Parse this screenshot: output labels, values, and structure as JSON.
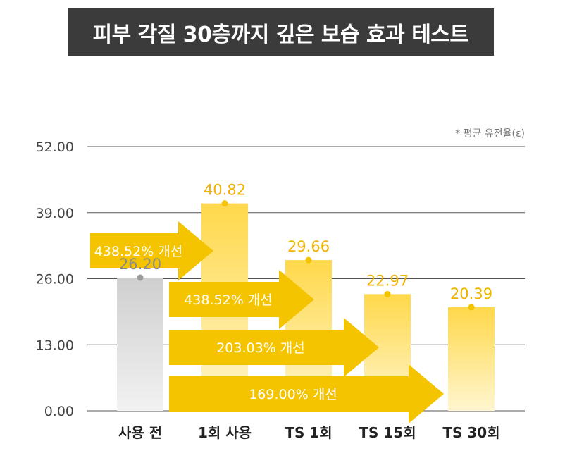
{
  "title": "피부 각질 30층까지 깊은 보습 효과 테스트",
  "note": "* 평균 유전율(ε)",
  "colors": {
    "accent": "#f5c400",
    "bar_top": "#ffd84a",
    "bar_bottom": "#fff3c4",
    "baseline_bar": "#cfcfcf",
    "title_bg": "#3b3b3b",
    "grid": "#555555"
  },
  "chart_data": {
    "type": "bar",
    "categories": [
      "사용 전",
      "1회 사용",
      "TS 1회",
      "TS 15회",
      "TS 30회"
    ],
    "values": [
      26.2,
      40.82,
      29.66,
      22.97,
      20.39
    ],
    "value_labels": [
      "26.20",
      "40.82",
      "29.66",
      "22.97",
      "20.39"
    ],
    "yticks": [
      "52.00",
      "39.00",
      "26.00",
      "13.00",
      "0.00"
    ],
    "ylim": [
      0,
      52
    ],
    "annotations": [
      {
        "text": "438.52% 개선",
        "from_category": 0,
        "to_category": 1
      },
      {
        "text": "438.52% 개선",
        "from_category": 1,
        "to_category": 2
      },
      {
        "text": "203.03% 개선",
        "from_category": 1,
        "to_category": 3
      },
      {
        "text": "169.00% 개선",
        "from_category": 0,
        "to_category": 4
      }
    ]
  }
}
